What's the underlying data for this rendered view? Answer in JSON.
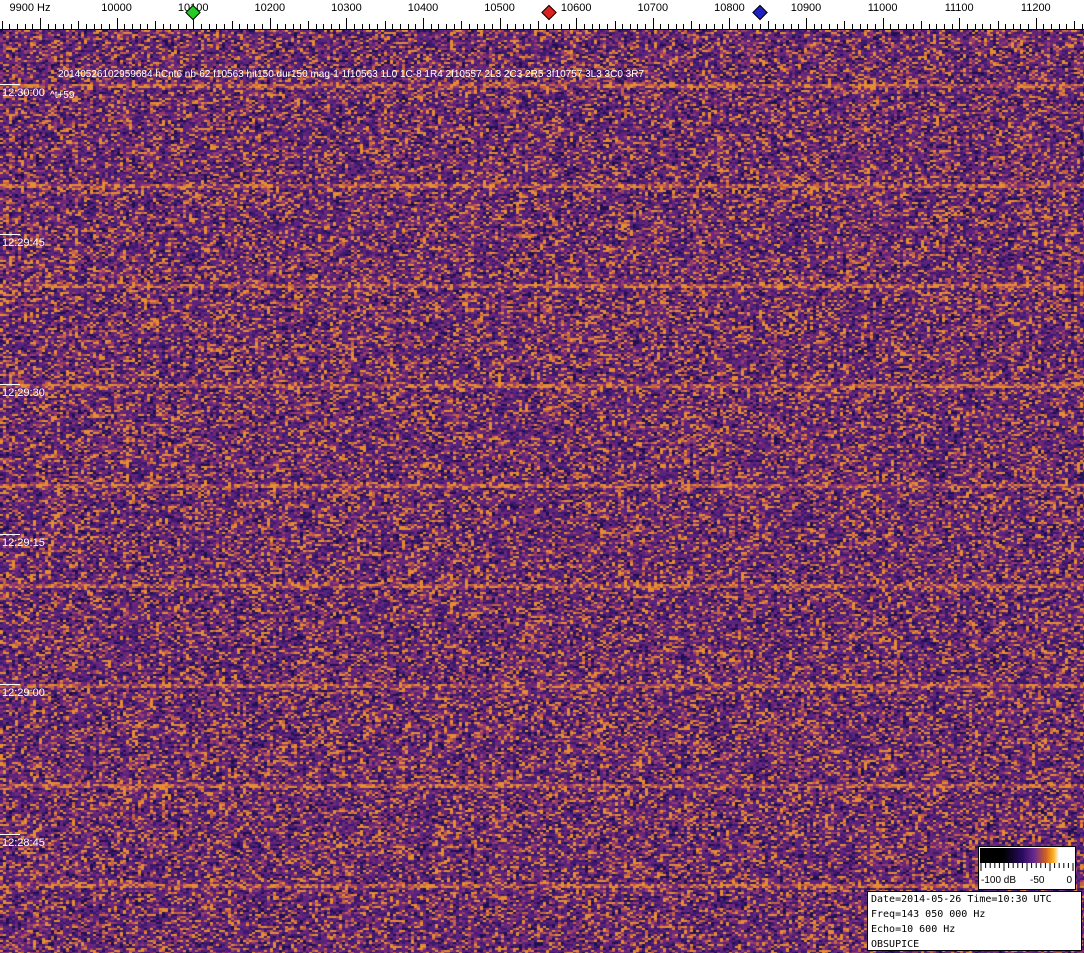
{
  "chart_data": {
    "type": "heatmap",
    "subtype": "spectrogram",
    "x_unit": "Hz",
    "x_ticks": [
      9900,
      10000,
      10100,
      10200,
      10300,
      10400,
      10500,
      10600,
      10700,
      10800,
      10900,
      11000,
      11100,
      11200
    ],
    "x_first_label": "9900 Hz",
    "xlim": [
      9850,
      11260
    ],
    "y_ticks": [
      "12:30:00",
      "12:29:45",
      "12:29:30",
      "12:29:15",
      "12:29:00",
      "12:28:45"
    ],
    "header_text": "20140526102959684 hCnt6 nb-62 f10563 hit150 dur150 mag-1 1f10563 1L0 1C-8 1R4 2f10557 2L3 2C3 2R5 3f10757 3L3 3C0 3R7",
    "time_offset": "^t+59",
    "markers": [
      {
        "freq": 10100,
        "color": "#22cc22"
      },
      {
        "freq": 10565,
        "color": "#dd2020"
      },
      {
        "freq": 10840,
        "color": "#2020c0"
      }
    ],
    "colorbar": {
      "range": [
        -100,
        0
      ],
      "labels": [
        "-100 dB",
        "-50",
        "0"
      ]
    },
    "colors": {
      "background": "#5a2a88",
      "signal": "#e89030"
    }
  },
  "info": {
    "line1": "Date=2014-05-26 Time=10:30 UTC",
    "line2": "Freq=143 050 000 Hz",
    "line3": "Echo=10 600 Hz",
    "line4": "OBSUPICE"
  }
}
